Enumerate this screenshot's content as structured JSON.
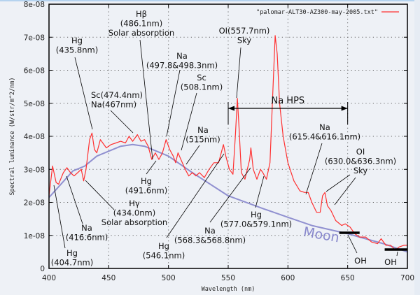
{
  "chart_data": {
    "type": "line",
    "title": "",
    "xlabel": "Wavelength (nm)",
    "ylabel": "Spectral luminance (W/str/m^2/nm)",
    "xlim": [
      400,
      700
    ],
    "ylim": [
      0,
      8e-08
    ],
    "grid": true,
    "legend_position": "top-right",
    "x_ticks": [
      "400",
      "450",
      "500",
      "550",
      "600",
      "650",
      "700"
    ],
    "x_tick_values": [
      400,
      450,
      500,
      550,
      600,
      650,
      700
    ],
    "y_ticks": [
      "0",
      "1e-08",
      "2e-08",
      "3e-08",
      "4e-08",
      "5e-08",
      "6e-08",
      "7e-08",
      "8e-08"
    ],
    "y_tick_values": [
      0,
      1e-08,
      2e-08,
      3e-08,
      4e-08,
      5e-08,
      6e-08,
      7e-08,
      8e-08
    ],
    "y_unit_scale": 1e-08,
    "series": [
      {
        "name": "\"palomar-ALT30-AZ300-may-2005.txt\"",
        "color": "#ff3030",
        "x": [
          400,
          403,
          406,
          408,
          412,
          415,
          418,
          421,
          424,
          427,
          429,
          431,
          434,
          436,
          438,
          440,
          443,
          445,
          448,
          452,
          456,
          460,
          464,
          467,
          470,
          474,
          477,
          480,
          483,
          486,
          489,
          492,
          495,
          498,
          501,
          504,
          506,
          508,
          511,
          514,
          517,
          520,
          523,
          526,
          530,
          534,
          538,
          542,
          546,
          548,
          551,
          554,
          556,
          557.7,
          559,
          561,
          564,
          568,
          569,
          571,
          574,
          577,
          579,
          582,
          585,
          587,
          589.3,
          591,
          593,
          596,
          600,
          605,
          610,
          614,
          617,
          620,
          624,
          627,
          629,
          631,
          633,
          636,
          640,
          645,
          648,
          652,
          656,
          660,
          665,
          670,
          675,
          678,
          682,
          686,
          690,
          693,
          697,
          700
        ],
        "y": [
          2.2,
          3.1,
          2.6,
          2.55,
          2.9,
          3.05,
          2.9,
          2.8,
          2.9,
          3.0,
          2.65,
          3.0,
          3.9,
          4.1,
          3.6,
          3.5,
          3.9,
          3.8,
          3.65,
          3.75,
          3.8,
          3.85,
          3.8,
          4.0,
          3.85,
          4.05,
          3.85,
          3.9,
          3.7,
          3.3,
          3.5,
          3.3,
          3.5,
          3.9,
          3.6,
          3.4,
          3.2,
          3.5,
          3.25,
          3.0,
          2.8,
          2.9,
          2.8,
          2.9,
          2.75,
          3.0,
          3.2,
          3.2,
          3.75,
          3.4,
          3.0,
          2.85,
          4.0,
          5.15,
          4.3,
          2.9,
          2.7,
          3.3,
          3.65,
          3.0,
          2.7,
          3.0,
          2.9,
          2.7,
          3.2,
          5.0,
          7.05,
          6.5,
          5.0,
          4.0,
          3.2,
          2.65,
          2.35,
          2.3,
          2.3,
          2.0,
          1.7,
          1.7,
          2.2,
          2.3,
          1.9,
          1.75,
          1.45,
          1.3,
          1.35,
          1.25,
          1.05,
          0.95,
          0.95,
          0.8,
          0.75,
          0.9,
          0.7,
          0.7,
          0.55,
          0.65,
          0.7,
          0.7
        ]
      },
      {
        "name": "Moon",
        "color": "#9090d0",
        "x": [
          400,
          420,
          430,
          440,
          460,
          470,
          480,
          500,
          520,
          550,
          580,
          600,
          620,
          650,
          680,
          700
        ],
        "y": [
          2.15,
          2.95,
          3.1,
          3.4,
          3.7,
          3.75,
          3.7,
          3.4,
          2.9,
          2.2,
          1.8,
          1.55,
          1.3,
          1.05,
          0.75,
          0.5
        ]
      }
    ],
    "annotations": [
      {
        "lines": [
          "Hg",
          "(435.8nm)"
        ]
      },
      {
        "lines": [
          "Hβ",
          "(486.1nm)",
          "Solar absorption"
        ]
      },
      {
        "lines": [
          "Na",
          "(497.8&498.3nm)"
        ]
      },
      {
        "lines": [
          "Sc",
          "(508.1nm)"
        ]
      },
      {
        "lines": [
          "Sc(474.4nm)",
          "Na(467nm)"
        ]
      },
      {
        "lines": [
          "Na",
          "(515nm)"
        ]
      },
      {
        "lines": [
          "OI(557.7nm)",
          "Sky"
        ]
      },
      {
        "lines": [
          "Na",
          "(615.4&616.1nm)"
        ]
      },
      {
        "lines": [
          "OI",
          "(630.0&636.3nm)",
          "Sky"
        ]
      },
      {
        "lines": [
          "Hg",
          "(491.6nm)"
        ]
      },
      {
        "lines": [
          "Hγ",
          "(434.0nm)",
          "Solar absorption"
        ]
      },
      {
        "lines": [
          "Na",
          "(416.6nm)"
        ]
      },
      {
        "lines": [
          "Hg",
          "(404.7nm)"
        ]
      },
      {
        "lines": [
          "Hg",
          "(546.1nm)"
        ]
      },
      {
        "lines": [
          "Na",
          "(568.3&568.8nm)"
        ]
      },
      {
        "lines": [
          "Hg",
          "(577.0&579.1nm)"
        ]
      },
      {
        "lines": [
          "OH"
        ]
      },
      {
        "lines": [
          "OH"
        ]
      }
    ],
    "range_annotation": {
      "label": "Na HPS",
      "from": 550,
      "to": 650
    },
    "moon_label": "Moon",
    "oh_bands": [
      {
        "from": 643,
        "to": 660
      },
      {
        "from": 681,
        "to": 700
      }
    ]
  }
}
